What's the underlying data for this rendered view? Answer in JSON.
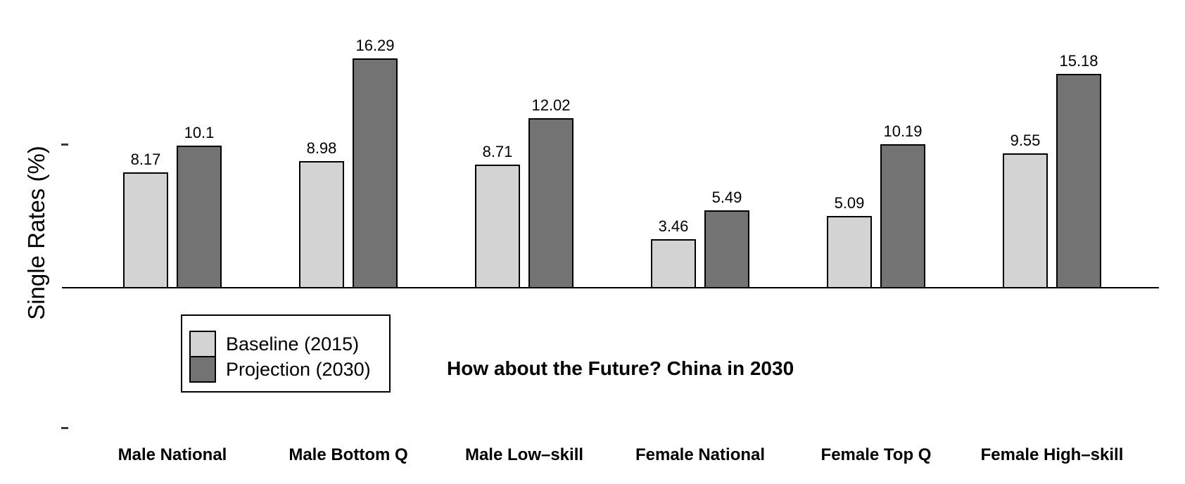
{
  "chart_data": {
    "type": "bar",
    "title": "How about the Future? China in 2030",
    "ylabel": "Single Rates (%)",
    "xlabel": "",
    "categories": [
      "Male National",
      "Male Bottom Q",
      "Male Low–skill",
      "Female National",
      "Female Top Q",
      "Female High–skill"
    ],
    "series": [
      {
        "name": "Baseline (2015)",
        "color": "#d3d3d3",
        "values": [
          8.17,
          8.98,
          8.71,
          3.46,
          5.09,
          9.55
        ],
        "value_labels": [
          "8.17",
          "8.98",
          "8.71",
          "3.46",
          "5.09",
          "9.55"
        ]
      },
      {
        "name": "Projection (2030)",
        "color": "#737373",
        "values": [
          10.1,
          16.29,
          12.02,
          5.49,
          10.19,
          15.18
        ],
        "value_labels": [
          "10.1",
          "16.29",
          "12.02",
          "5.49",
          "10.19",
          "15.18"
        ]
      }
    ],
    "ylim": [
      0,
      18
    ],
    "grid": false,
    "legend_position": "bottom-left",
    "bar_value_labels_shown": true,
    "y_axis_tick_labels_shown": false
  },
  "legend": {
    "items": [
      {
        "label": "Baseline (2015)",
        "color": "#d3d3d3"
      },
      {
        "label": "Projection (2030)",
        "color": "#737373"
      }
    ]
  },
  "colors": {
    "background": "#ffffff",
    "bar_border": "#000000",
    "axis": "#000000",
    "text": "#000000"
  }
}
